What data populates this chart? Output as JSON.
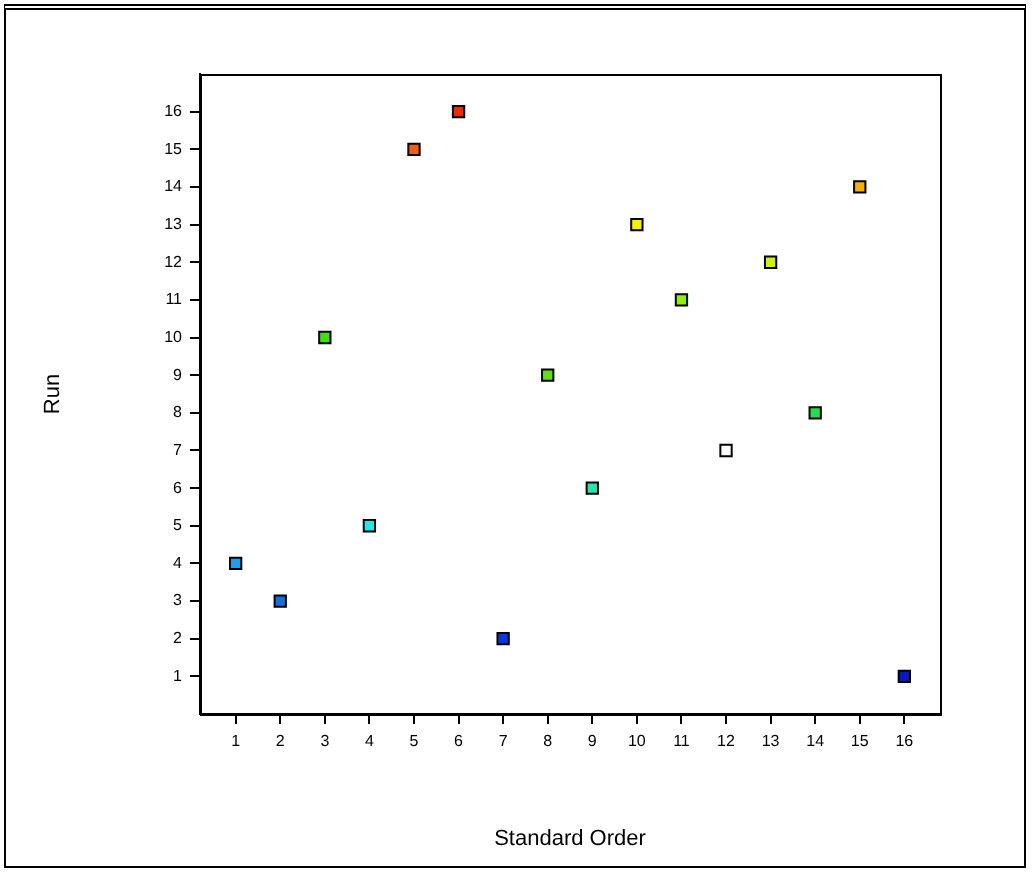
{
  "chart_data": {
    "type": "scatter",
    "xlabel": "Standard Order",
    "ylabel": "Run",
    "x": [
      1,
      2,
      3,
      4,
      5,
      6,
      7,
      8,
      9,
      10,
      11,
      12,
      13,
      14,
      15,
      16
    ],
    "values": [
      4,
      3,
      10,
      5,
      15,
      16,
      2,
      9,
      6,
      13,
      11,
      7,
      12,
      8,
      14,
      1
    ],
    "colors": [
      "#1ea0e8",
      "#1070e0",
      "#40e010",
      "#20e8e8",
      "#f06010",
      "#f02800",
      "#0838e0",
      "#60e010",
      "#20e8b0",
      "#f8f000",
      "#90f000",
      "#ffffff",
      "#d0f000",
      "#20e050",
      "#f8b000",
      "#0818c8"
    ],
    "marker": "square",
    "grid": false,
    "xlim": [
      0.2,
      16.8
    ],
    "ylim": [
      0,
      17
    ],
    "xticks": [
      1,
      2,
      3,
      4,
      5,
      6,
      7,
      8,
      9,
      10,
      11,
      12,
      13,
      14,
      15,
      16
    ],
    "yticks": [
      1,
      2,
      3,
      4,
      5,
      6,
      7,
      8,
      9,
      10,
      11,
      12,
      13,
      14,
      15,
      16
    ]
  }
}
